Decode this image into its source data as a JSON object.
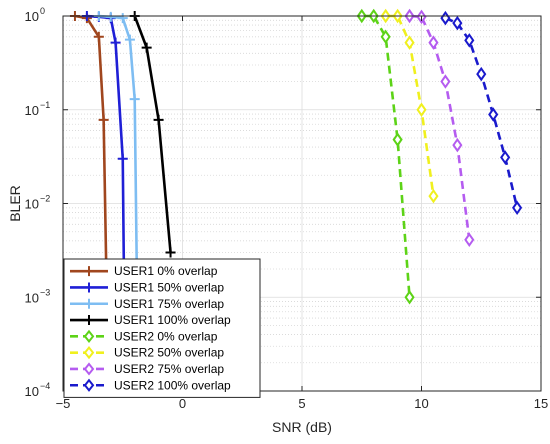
{
  "chart_data": {
    "type": "line",
    "xlabel": "SNR (dB)",
    "ylabel": "BLER",
    "xlim": [
      -5,
      15
    ],
    "ylim": [
      0.0001,
      1
    ],
    "yscale": "log",
    "grid": true,
    "x_ticks": [
      -5,
      0,
      5,
      10,
      15
    ],
    "x_tick_labels": [
      "−5",
      "0",
      "5",
      "10",
      "15"
    ],
    "y_ticks": [
      0.0001,
      0.001,
      0.01,
      0.1,
      1
    ],
    "y_tick_labels": [
      {
        "base": "10",
        "exp": "−4"
      },
      {
        "base": "10",
        "exp": "−3"
      },
      {
        "base": "10",
        "exp": "−2"
      },
      {
        "base": "10",
        "exp": "−1"
      },
      {
        "base": "10",
        "exp": "0"
      }
    ],
    "legend_position": "bottom-left",
    "series": [
      {
        "name": "USER1 0% overlap",
        "color": "#a0461e",
        "style": "solid",
        "marker": "plus",
        "x": [
          -4.5,
          -4.0,
          -3.5,
          -3.3,
          -3.1
        ],
        "y": [
          1.0,
          0.95,
          0.6,
          0.078,
          0.0001
        ]
      },
      {
        "name": "USER1 50% overlap",
        "color": "#1f1fd6",
        "style": "solid",
        "marker": "plus",
        "x": [
          -4.0,
          -3.5,
          -3.0,
          -2.8,
          -2.5,
          -2.4
        ],
        "y": [
          1.0,
          0.98,
          0.95,
          0.52,
          0.03,
          0.0001
        ]
      },
      {
        "name": "USER1 75% overlap",
        "color": "#7ebdf2",
        "style": "solid",
        "marker": "plus",
        "x": [
          -3.5,
          -3.0,
          -2.5,
          -2.2,
          -2.0,
          -1.85
        ],
        "y": [
          1.0,
          0.98,
          0.95,
          0.56,
          0.13,
          0.0001
        ]
      },
      {
        "name": "USER1 100% overlap",
        "color": "#000000",
        "style": "solid",
        "marker": "plus",
        "x": [
          -2.0,
          -1.5,
          -1.0,
          -0.5
        ],
        "y": [
          1.0,
          0.46,
          0.078,
          0.003
        ]
      },
      {
        "name": "USER2 0% overlap",
        "color": "#5dd317",
        "style": "dashed",
        "marker": "diamond",
        "x": [
          7.5,
          8.0,
          8.5,
          9.0,
          9.5
        ],
        "y": [
          1.0,
          1.0,
          0.6,
          0.048,
          0.001
        ]
      },
      {
        "name": "USER2 50% overlap",
        "color": "#f0f01e",
        "style": "dashed",
        "marker": "diamond",
        "x": [
          8.5,
          9.0,
          9.5,
          10.0,
          10.5
        ],
        "y": [
          1.0,
          1.0,
          0.52,
          0.1,
          0.012
        ]
      },
      {
        "name": "USER2 75% overlap",
        "color": "#b55cf0",
        "style": "dashed",
        "marker": "diamond",
        "x": [
          9.5,
          10.0,
          10.5,
          11.0,
          11.5,
          12.0
        ],
        "y": [
          1.0,
          0.98,
          0.52,
          0.2,
          0.042,
          0.0041
        ]
      },
      {
        "name": "USER2 100% overlap",
        "color": "#1a1acc",
        "style": "dashed",
        "marker": "diamond",
        "x": [
          11.0,
          11.5,
          12.0,
          12.5,
          13.0,
          13.5,
          14.0
        ],
        "y": [
          0.95,
          0.84,
          0.55,
          0.24,
          0.089,
          0.031,
          0.009
        ]
      }
    ]
  }
}
